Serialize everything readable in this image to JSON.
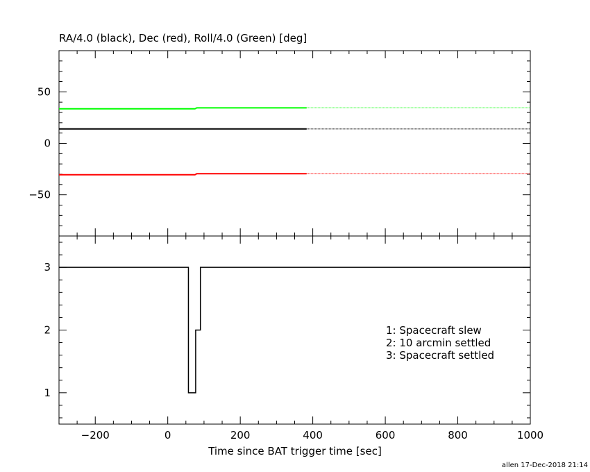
{
  "chart_data": [
    {
      "type": "line",
      "title": "RA/4.0 (black), Dec (red), Roll/4.0 (Green) [deg]",
      "xlim": [
        -300,
        1000
      ],
      "ylim": [
        -90,
        90
      ],
      "yticks": [
        {
          "value": 50,
          "label": "50"
        },
        {
          "value": 0,
          "label": "0"
        },
        {
          "value": -50,
          "label": "−50"
        }
      ],
      "grid": false,
      "colors": {
        "roll": "#00ff00",
        "ra": "#000000",
        "dec": "#ff0000"
      },
      "series": [
        {
          "key": "roll",
          "color": "#00ff00",
          "segments": [
            {
              "style": "solid",
              "points": [
                [
                  -300,
                  33.5
                ],
                [
                  75,
                  33.5
                ],
                [
                  80,
                  34.5
                ],
                [
                  383,
                  34.5
                ]
              ]
            },
            {
              "style": "dotted",
              "points": [
                [
                  383,
                  34.5
                ],
                [
                  1000,
                  34.5
                ]
              ]
            }
          ]
        },
        {
          "key": "ra",
          "color": "#000000",
          "segments": [
            {
              "style": "solid",
              "points": [
                [
                  -300,
                  14
                ],
                [
                  383,
                  14
                ]
              ]
            },
            {
              "style": "dotted",
              "points": [
                [
                  383,
                  14
                ],
                [
                  1000,
                  14
                ]
              ]
            }
          ]
        },
        {
          "key": "dec",
          "color": "#ff0000",
          "segments": [
            {
              "style": "solid",
              "points": [
                [
                  -300,
                  -30.5
                ],
                [
                  75,
                  -30.5
                ],
                [
                  80,
                  -29.5
                ],
                [
                  383,
                  -29.5
                ]
              ]
            },
            {
              "style": "dotted",
              "points": [
                [
                  383,
                  -29.5
                ],
                [
                  1000,
                  -29.5
                ]
              ]
            }
          ]
        }
      ]
    },
    {
      "type": "line",
      "xlabel": "Time since BAT trigger time [sec]",
      "xlim": [
        -300,
        1000
      ],
      "ylim": [
        0.5,
        3.5
      ],
      "xticks": [
        {
          "value": -200,
          "label": "−200"
        },
        {
          "value": 0,
          "label": "0"
        },
        {
          "value": 200,
          "label": "200"
        },
        {
          "value": 400,
          "label": "400"
        },
        {
          "value": 600,
          "label": "600"
        },
        {
          "value": 800,
          "label": "800"
        },
        {
          "value": 1000,
          "label": "1000"
        }
      ],
      "yticks": [
        {
          "value": 3,
          "label": "3"
        },
        {
          "value": 2,
          "label": "2"
        },
        {
          "value": 1,
          "label": "1"
        }
      ],
      "grid": false,
      "series": [
        {
          "key": "pointing_state",
          "color": "#000000",
          "step_points": [
            [
              -300,
              3
            ],
            [
              57,
              1
            ],
            [
              77,
              2
            ],
            [
              90,
              3
            ],
            [
              1000,
              3
            ]
          ]
        }
      ],
      "legend_placement": "right-center",
      "annotations": [
        "1: Spacecraft slew",
        "2: 10 arcmin settled",
        "3: Spacecraft settled"
      ]
    }
  ],
  "footer": {
    "stamp": "allen 17-Dec-2018 21:14"
  }
}
